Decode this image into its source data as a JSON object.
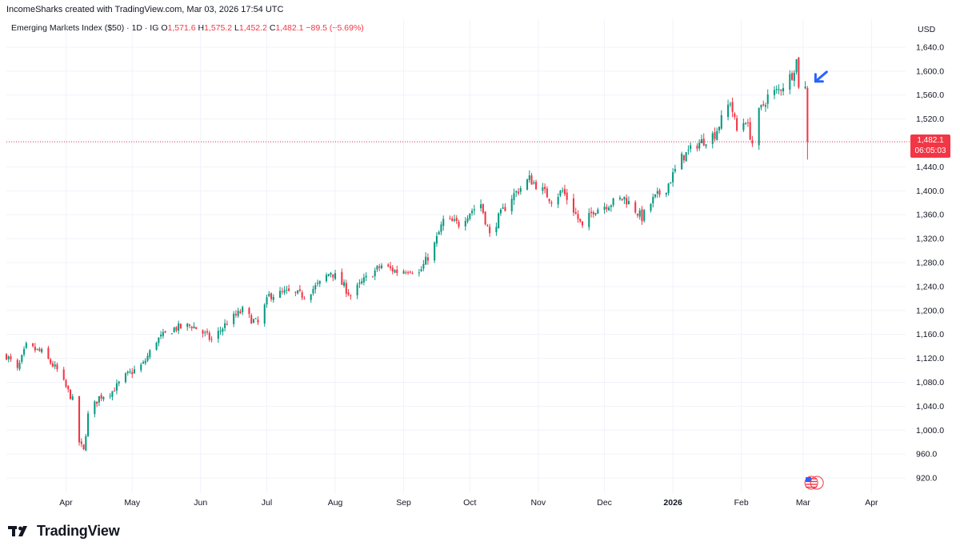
{
  "header": {
    "credit": "IncomeSharks created with TradingView.com, Mar 03, 2026 17:54 UTC"
  },
  "legend": {
    "symbol": "Emerging Markets Index ($50) · 1D · IG",
    "open_label": "O",
    "open": "1,571.6",
    "high_label": "H",
    "high": "1,575.2",
    "low_label": "L",
    "low": "1,452.2",
    "close_label": "C",
    "close": "1,482.1",
    "change": "−89.5 (−5.69%)"
  },
  "currency": "USD",
  "price_tag": {
    "price": "1,482.1",
    "countdown": "06:05:03"
  },
  "logo": {
    "text": "TradingView"
  },
  "colors": {
    "up": "#089981",
    "down": "#f23645",
    "grid": "#f0f3fa",
    "arrow": "#2962ff"
  },
  "chart_data": {
    "type": "candlestick",
    "title": "",
    "xlabel": "",
    "ylabel": "",
    "ylim": [
      900,
      1660
    ],
    "y_ticks": [
      920,
      960,
      1000,
      1040,
      1080,
      1120,
      1160,
      1200,
      1240,
      1280,
      1320,
      1360,
      1400,
      1440,
      1480,
      1520,
      1560,
      1600,
      1640
    ],
    "y_tick_labels": [
      "920.0",
      "960.0",
      "1,000.0",
      "1,040.0",
      "1,080.0",
      "1,120.0",
      "1,160.0",
      "1,200.0",
      "1,240.0",
      "1,280.0",
      "1,320.0",
      "1,360.0",
      "1,400.0",
      "1,440.0",
      "1,480.0",
      "1,520.0",
      "1,560.0",
      "1,600.0",
      "1,640.0"
    ],
    "x_ticks": [
      {
        "label": "Apr",
        "x": "2025-04-01"
      },
      {
        "label": "May",
        "x": "2025-05-01"
      },
      {
        "label": "Jun",
        "x": "2025-06-01"
      },
      {
        "label": "Jul",
        "x": "2025-07-01"
      },
      {
        "label": "Aug",
        "x": "2025-08-01"
      },
      {
        "label": "Sep",
        "x": "2025-09-01"
      },
      {
        "label": "Oct",
        "x": "2025-10-01"
      },
      {
        "label": "Nov",
        "x": "2025-11-01"
      },
      {
        "label": "Dec",
        "x": "2025-12-01"
      },
      {
        "label": "2026",
        "x": "2026-01-01",
        "bold": true
      },
      {
        "label": "Feb",
        "x": "2026-02-01"
      },
      {
        "label": "Mar",
        "x": "2026-03-01"
      },
      {
        "label": "Apr",
        "x": "2026-04-01"
      }
    ],
    "x_range": [
      "2025-03-05",
      "2026-04-15"
    ],
    "last_price": 1482.1,
    "grid": true,
    "anchors": [
      [
        "2025-03-05",
        1125
      ],
      [
        "2025-03-10",
        1100
      ],
      [
        "2025-03-14",
        1140
      ],
      [
        "2025-03-21",
        1130
      ],
      [
        "2025-03-28",
        1100
      ],
      [
        "2025-04-04",
        1050
      ],
      [
        "2025-04-07",
        980
      ],
      [
        "2025-04-09",
        965
      ],
      [
        "2025-04-11",
        1025
      ],
      [
        "2025-04-16",
        1055
      ],
      [
        "2025-04-22",
        1065
      ],
      [
        "2025-04-28",
        1090
      ],
      [
        "2025-05-06",
        1110
      ],
      [
        "2025-05-12",
        1150
      ],
      [
        "2025-05-20",
        1170
      ],
      [
        "2025-05-28",
        1175
      ],
      [
        "2025-06-03",
        1160
      ],
      [
        "2025-06-06",
        1150
      ],
      [
        "2025-06-13",
        1180
      ],
      [
        "2025-06-20",
        1200
      ],
      [
        "2025-06-24",
        1185
      ],
      [
        "2025-06-27",
        1178
      ],
      [
        "2025-07-02",
        1225
      ],
      [
        "2025-07-10",
        1230
      ],
      [
        "2025-07-18",
        1225
      ],
      [
        "2025-07-25",
        1245
      ],
      [
        "2025-07-30",
        1265
      ],
      [
        "2025-08-05",
        1240
      ],
      [
        "2025-08-08",
        1225
      ],
      [
        "2025-08-14",
        1250
      ],
      [
        "2025-08-22",
        1275
      ],
      [
        "2025-08-29",
        1265
      ],
      [
        "2025-09-04",
        1270
      ],
      [
        "2025-09-08",
        1262
      ],
      [
        "2025-09-15",
        1310
      ],
      [
        "2025-09-19",
        1350
      ],
      [
        "2025-09-26",
        1345
      ],
      [
        "2025-10-01",
        1365
      ],
      [
        "2025-10-06",
        1378
      ],
      [
        "2025-10-10",
        1325
      ],
      [
        "2025-10-14",
        1355
      ],
      [
        "2025-10-20",
        1390
      ],
      [
        "2025-10-28",
        1420
      ],
      [
        "2025-11-03",
        1400
      ],
      [
        "2025-11-07",
        1385
      ],
      [
        "2025-11-12",
        1400
      ],
      [
        "2025-11-17",
        1368
      ],
      [
        "2025-11-21",
        1338
      ],
      [
        "2025-11-26",
        1368
      ],
      [
        "2025-12-03",
        1378
      ],
      [
        "2025-12-10",
        1388
      ],
      [
        "2025-12-15",
        1368
      ],
      [
        "2025-12-18",
        1355
      ],
      [
        "2025-12-23",
        1385
      ],
      [
        "2025-12-29",
        1405
      ],
      [
        "2026-01-05",
        1455
      ],
      [
        "2026-01-12",
        1478
      ],
      [
        "2026-01-20",
        1495
      ],
      [
        "2026-01-27",
        1550
      ],
      [
        "2026-01-30",
        1500
      ],
      [
        "2026-02-03",
        1520
      ],
      [
        "2026-02-06",
        1480
      ],
      [
        "2026-02-09",
        1530
      ],
      [
        "2026-02-13",
        1558
      ],
      [
        "2026-02-18",
        1568
      ],
      [
        "2026-02-24",
        1595
      ],
      [
        "2026-02-26",
        1618
      ],
      [
        "2026-02-27",
        1578
      ],
      [
        "2026-03-02",
        1571.6
      ]
    ],
    "candles": [
      {
        "x": "2026-03-03",
        "o": 1571.6,
        "h": 1575.2,
        "l": 1452.2,
        "c": 1482.1
      }
    ],
    "annotation": {
      "type": "arrow",
      "x": "2026-03-03",
      "y": 1580,
      "color": "#2962ff"
    }
  }
}
